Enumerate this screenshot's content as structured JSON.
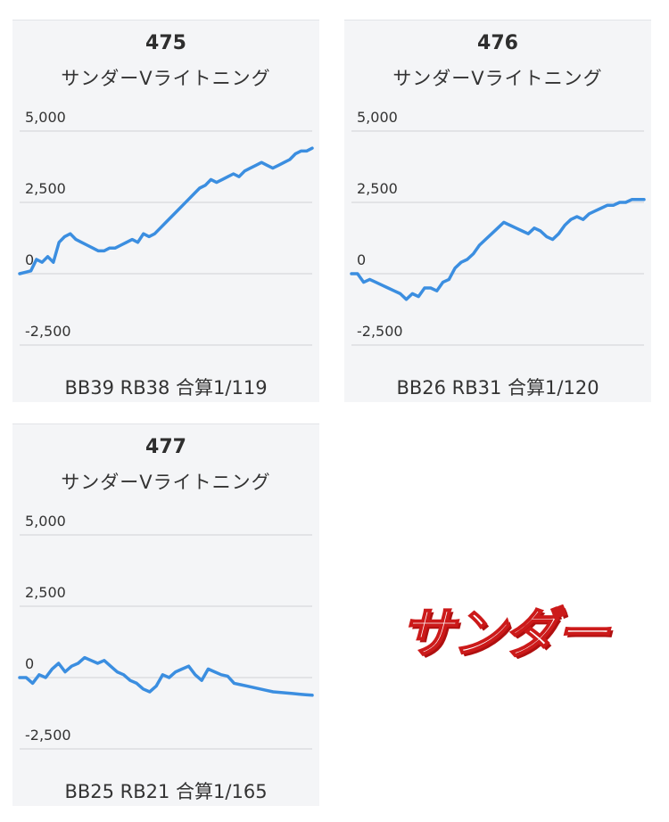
{
  "machines": [
    {
      "number": "475",
      "name": "サンダーVライトニング",
      "stats": "BB39 RB38 合算1/119"
    },
    {
      "number": "476",
      "name": "サンダーVライトニング",
      "stats": "BB26 RB31 合算1/120"
    },
    {
      "number": "477",
      "name": "サンダーVライトニング",
      "stats": "BB25 RB21 合算1/165"
    }
  ],
  "stamp_text": "サンダー",
  "colors": {
    "line": "#3b8ee0",
    "grid": "#dcdde1",
    "card_bg": "#f4f5f7",
    "stamp": "#cc1a1a"
  },
  "chart_data": [
    {
      "type": "line",
      "title": "475",
      "y_ticks": [
        "5,000",
        "2,500",
        "0",
        "-2,500"
      ],
      "ylim": [
        -2500,
        5000
      ],
      "grid": true,
      "x": [
        0,
        1,
        2,
        3,
        4,
        5,
        6,
        7,
        8,
        9,
        10,
        11,
        12,
        13,
        14,
        15,
        16,
        17,
        18,
        19,
        20,
        21,
        22,
        23,
        24,
        25,
        26,
        27,
        28,
        29,
        30,
        31,
        32,
        33,
        34,
        35,
        36,
        37,
        38,
        39,
        40,
        41,
        42,
        43,
        44,
        45,
        46,
        47,
        48,
        49,
        50,
        51,
        52
      ],
      "values": [
        0,
        50,
        100,
        500,
        400,
        600,
        400,
        1100,
        1300,
        1400,
        1200,
        1100,
        1000,
        900,
        800,
        800,
        900,
        900,
        1000,
        1100,
        1200,
        1100,
        1400,
        1300,
        1400,
        1600,
        1800,
        2000,
        2200,
        2400,
        2600,
        2800,
        3000,
        3100,
        3300,
        3200,
        3300,
        3400,
        3500,
        3400,
        3600,
        3700,
        3800,
        3900,
        3800,
        3700,
        3800,
        3900,
        4000,
        4200,
        4300,
        4300,
        4400
      ]
    },
    {
      "type": "line",
      "title": "476",
      "y_ticks": [
        "5,000",
        "2,500",
        "0",
        "-2,500"
      ],
      "ylim": [
        -2500,
        5000
      ],
      "grid": true,
      "x": [
        0,
        1,
        2,
        3,
        4,
        5,
        6,
        7,
        8,
        9,
        10,
        11,
        12,
        13,
        14,
        15,
        16,
        17,
        18,
        19,
        20,
        21,
        22,
        23,
        24,
        25,
        26,
        27,
        28,
        29,
        30,
        31,
        32,
        33,
        34,
        35,
        36,
        37,
        38,
        39,
        40,
        41,
        42,
        43,
        44,
        45,
        46,
        47,
        48
      ],
      "values": [
        0,
        0,
        -300,
        -200,
        -300,
        -400,
        -500,
        -600,
        -700,
        -900,
        -700,
        -800,
        -500,
        -500,
        -600,
        -300,
        -200,
        200,
        400,
        500,
        700,
        1000,
        1200,
        1400,
        1600,
        1800,
        1700,
        1600,
        1500,
        1400,
        1600,
        1500,
        1300,
        1200,
        1400,
        1700,
        1900,
        2000,
        1900,
        2100,
        2200,
        2300,
        2400,
        2400,
        2500,
        2500,
        2600,
        2600,
        2600
      ]
    },
    {
      "type": "line",
      "title": "477",
      "y_ticks": [
        "5,000",
        "2,500",
        "0",
        "-2,500"
      ],
      "ylim": [
        -2500,
        5000
      ],
      "grid": true,
      "x": [
        0,
        1,
        2,
        3,
        4,
        5,
        6,
        7,
        8,
        9,
        10,
        11,
        12,
        13,
        14,
        15,
        16,
        17,
        18,
        19,
        20,
        21,
        22,
        23,
        24,
        25,
        26,
        27,
        28,
        29,
        30,
        31,
        32,
        33,
        34,
        35,
        36,
        37,
        38,
        39,
        40,
        41,
        42,
        43,
        44,
        45
      ],
      "values": [
        0,
        0,
        -200,
        100,
        0,
        300,
        500,
        200,
        400,
        500,
        700,
        600,
        500,
        600,
        400,
        200,
        100,
        -100,
        -200,
        -400,
        -500,
        -300,
        100,
        0,
        200,
        300,
        400,
        100,
        -100,
        300,
        200,
        100,
        50,
        -200,
        -250,
        -300,
        -350,
        -400,
        -450,
        -500,
        -520,
        -540,
        -560,
        -580,
        -600,
        -620
      ]
    }
  ]
}
